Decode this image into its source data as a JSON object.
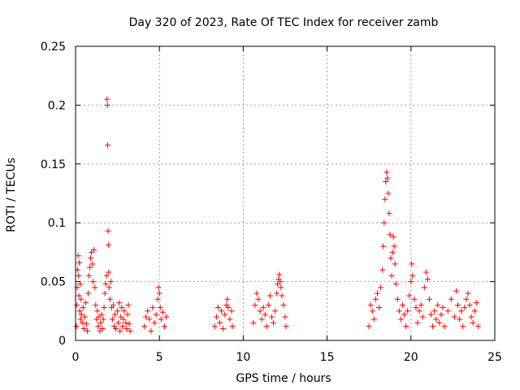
{
  "chart_data": {
    "type": "scatter",
    "title": "Day 320 of 2023, Rate Of TEC Index for receiver zamb",
    "xlabel": "GPS time / hours",
    "ylabel": "ROTI / TECUs",
    "xlim": [
      0,
      25
    ],
    "ylim": [
      0,
      0.25
    ],
    "xticks": [
      0,
      5,
      10,
      15,
      20,
      25
    ],
    "xtick_labels": [
      "0",
      "5",
      "10",
      "15",
      "20",
      "25"
    ],
    "yticks": [
      0,
      0.05,
      0.1,
      0.15,
      0.2,
      0.25
    ],
    "ytick_labels": [
      "0",
      "0.05",
      "0.1",
      "0.15",
      "0.2",
      "0.25"
    ],
    "grid": true,
    "marker": "+",
    "color": "#ff0000",
    "series": [
      {
        "points": [
          [
            0.05,
            0.012
          ],
          [
            0.08,
            0.03
          ],
          [
            0.1,
            0.045
          ],
          [
            0.12,
            0.06
          ],
          [
            0.15,
            0.072
          ],
          [
            0.18,
            0.055
          ],
          [
            0.2,
            0.038
          ],
          [
            0.22,
            0.066
          ],
          [
            0.25,
            0.025
          ],
          [
            0.28,
            0.048
          ],
          [
            0.3,
            0.018
          ],
          [
            0.33,
            0.035
          ],
          [
            0.35,
            0.022
          ],
          [
            0.4,
            0.015
          ],
          [
            0.45,
            0.028
          ],
          [
            0.5,
            0.01
          ],
          [
            0.55,
            0.02
          ],
          [
            0.6,
            0.032
          ],
          [
            0.65,
            0.014
          ],
          [
            0.7,
            0.008
          ],
          [
            0.75,
            0.04
          ],
          [
            0.8,
            0.055
          ],
          [
            0.85,
            0.062
          ],
          [
            0.9,
            0.07
          ],
          [
            0.95,
            0.075
          ],
          [
            1.0,
            0.065
          ],
          [
            1.05,
            0.05
          ],
          [
            1.1,
            0.077
          ],
          [
            1.15,
            0.045
          ],
          [
            1.2,
            0.03
          ],
          [
            1.25,
            0.018
          ],
          [
            1.3,
            0.025
          ],
          [
            1.35,
            0.012
          ],
          [
            1.4,
            0.02
          ],
          [
            1.45,
            0.008
          ],
          [
            1.5,
            0.015
          ],
          [
            1.55,
            0.022
          ],
          [
            1.6,
            0.01
          ],
          [
            1.65,
            0.018
          ],
          [
            1.7,
            0.028
          ],
          [
            1.75,
            0.04
          ],
          [
            1.8,
            0.048
          ],
          [
            1.85,
            0.055
          ],
          [
            1.88,
            0.205
          ],
          [
            1.9,
            0.2
          ],
          [
            1.92,
            0.166
          ],
          [
            1.94,
            0.093
          ],
          [
            1.96,
            0.081
          ],
          [
            1.98,
            0.058
          ],
          [
            2.0,
            0.045
          ],
          [
            2.05,
            0.035
          ],
          [
            2.1,
            0.05
          ],
          [
            2.15,
            0.028
          ],
          [
            2.2,
            0.018
          ],
          [
            2.25,
            0.03
          ],
          [
            2.3,
            0.012
          ],
          [
            2.35,
            0.022
          ],
          [
            2.4,
            0.01
          ],
          [
            2.5,
            0.025
          ],
          [
            2.55,
            0.015
          ],
          [
            2.6,
            0.032
          ],
          [
            2.65,
            0.008
          ],
          [
            2.7,
            0.02
          ],
          [
            2.75,
            0.028
          ],
          [
            2.8,
            0.012
          ],
          [
            2.85,
            0.018
          ],
          [
            2.9,
            0.025
          ],
          [
            3.0,
            0.015
          ],
          [
            3.05,
            0.01
          ],
          [
            3.1,
            0.022
          ],
          [
            3.15,
            0.03
          ],
          [
            3.2,
            0.014
          ],
          [
            3.25,
            0.008
          ],
          [
            4.1,
            0.012
          ],
          [
            4.2,
            0.02
          ],
          [
            4.3,
            0.025
          ],
          [
            4.4,
            0.018
          ],
          [
            4.5,
            0.008
          ],
          [
            4.6,
            0.028
          ],
          [
            4.7,
            0.015
          ],
          [
            4.8,
            0.022
          ],
          [
            4.9,
            0.035
          ],
          [
            4.95,
            0.045
          ],
          [
            5.0,
            0.04
          ],
          [
            5.05,
            0.028
          ],
          [
            5.1,
            0.018
          ],
          [
            5.2,
            0.024
          ],
          [
            5.3,
            0.012
          ],
          [
            5.4,
            0.02
          ],
          [
            8.3,
            0.012
          ],
          [
            8.4,
            0.02
          ],
          [
            8.5,
            0.028
          ],
          [
            8.6,
            0.015
          ],
          [
            8.7,
            0.025
          ],
          [
            8.8,
            0.01
          ],
          [
            8.9,
            0.022
          ],
          [
            9.0,
            0.03
          ],
          [
            9.05,
            0.035
          ],
          [
            9.1,
            0.028
          ],
          [
            9.2,
            0.018
          ],
          [
            9.3,
            0.025
          ],
          [
            9.35,
            0.012
          ],
          [
            10.6,
            0.015
          ],
          [
            10.7,
            0.03
          ],
          [
            10.8,
            0.04
          ],
          [
            10.9,
            0.035
          ],
          [
            11.0,
            0.025
          ],
          [
            11.1,
            0.018
          ],
          [
            11.2,
            0.028
          ],
          [
            11.3,
            0.022
          ],
          [
            11.4,
            0.012
          ],
          [
            11.5,
            0.03
          ],
          [
            11.6,
            0.038
          ],
          [
            11.7,
            0.02
          ],
          [
            11.8,
            0.015
          ],
          [
            11.9,
            0.025
          ],
          [
            12.0,
            0.04
          ],
          [
            12.05,
            0.048
          ],
          [
            12.1,
            0.052
          ],
          [
            12.15,
            0.056
          ],
          [
            12.2,
            0.05
          ],
          [
            12.25,
            0.045
          ],
          [
            12.3,
            0.038
          ],
          [
            12.4,
            0.03
          ],
          [
            12.5,
            0.02
          ],
          [
            12.55,
            0.012
          ],
          [
            17.5,
            0.012
          ],
          [
            17.6,
            0.03
          ],
          [
            17.7,
            0.025
          ],
          [
            17.8,
            0.018
          ],
          [
            17.9,
            0.035
          ],
          [
            18.0,
            0.04
          ],
          [
            18.1,
            0.028
          ],
          [
            18.2,
            0.045
          ],
          [
            18.3,
            0.06
          ],
          [
            18.35,
            0.08
          ],
          [
            18.4,
            0.1
          ],
          [
            18.45,
            0.12
          ],
          [
            18.5,
            0.135
          ],
          [
            18.55,
            0.143
          ],
          [
            18.6,
            0.138
          ],
          [
            18.65,
            0.125
          ],
          [
            18.7,
            0.108
          ],
          [
            18.75,
            0.09
          ],
          [
            18.8,
            0.07
          ],
          [
            18.85,
            0.055
          ],
          [
            18.9,
            0.075
          ],
          [
            18.95,
            0.088
          ],
          [
            19.0,
            0.08
          ],
          [
            19.05,
            0.065
          ],
          [
            19.1,
            0.048
          ],
          [
            19.2,
            0.035
          ],
          [
            19.3,
            0.025
          ],
          [
            19.4,
            0.018
          ],
          [
            19.5,
            0.03
          ],
          [
            19.6,
            0.022
          ],
          [
            19.7,
            0.012
          ],
          [
            19.8,
            0.025
          ],
          [
            19.9,
            0.038
          ],
          [
            20.0,
            0.05
          ],
          [
            20.05,
            0.065
          ],
          [
            20.1,
            0.055
          ],
          [
            20.2,
            0.035
          ],
          [
            20.3,
            0.028
          ],
          [
            20.4,
            0.015
          ],
          [
            20.5,
            0.025
          ],
          [
            20.6,
            0.03
          ],
          [
            20.7,
            0.02
          ],
          [
            20.8,
            0.045
          ],
          [
            20.9,
            0.058
          ],
          [
            21.0,
            0.052
          ],
          [
            21.1,
            0.035
          ],
          [
            21.2,
            0.022
          ],
          [
            21.3,
            0.012
          ],
          [
            21.4,
            0.025
          ],
          [
            21.5,
            0.018
          ],
          [
            21.6,
            0.03
          ],
          [
            21.7,
            0.015
          ],
          [
            21.8,
            0.022
          ],
          [
            21.9,
            0.028
          ],
          [
            22.0,
            0.012
          ],
          [
            22.2,
            0.025
          ],
          [
            22.4,
            0.035
          ],
          [
            22.6,
            0.02
          ],
          [
            22.7,
            0.042
          ],
          [
            22.8,
            0.03
          ],
          [
            22.9,
            0.018
          ],
          [
            23.0,
            0.025
          ],
          [
            23.1,
            0.012
          ],
          [
            23.2,
            0.028
          ],
          [
            23.3,
            0.035
          ],
          [
            23.4,
            0.04
          ],
          [
            23.5,
            0.03
          ],
          [
            23.6,
            0.02
          ],
          [
            23.7,
            0.015
          ],
          [
            23.8,
            0.025
          ],
          [
            23.9,
            0.032
          ],
          [
            24.0,
            0.012
          ]
        ]
      }
    ]
  }
}
